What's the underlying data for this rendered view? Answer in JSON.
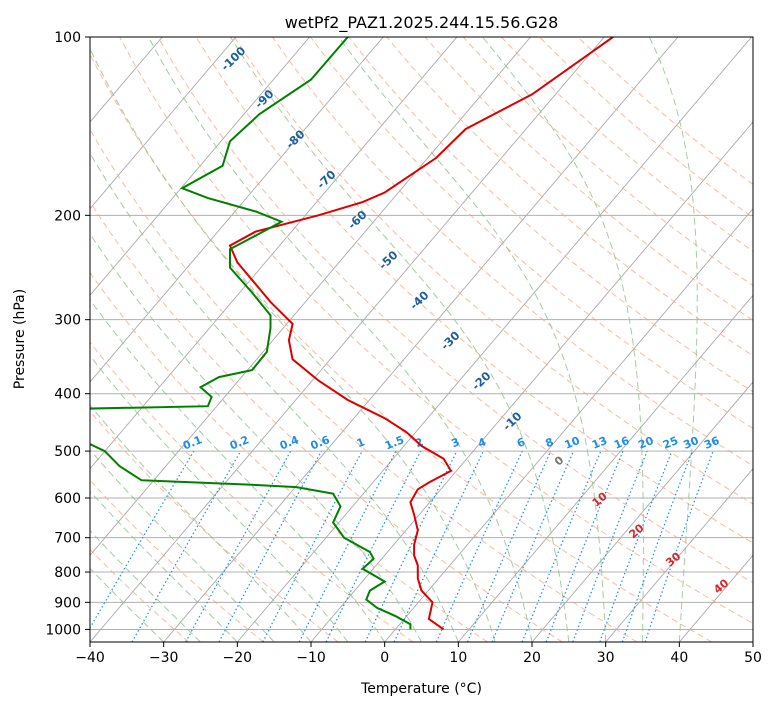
{
  "chart_data": {
    "type": "line",
    "subtype": "skew-t log-p diagram",
    "title": "wetPf2_PAZ1.2025.244.15.56.G28",
    "xlabel": "Temperature (°C)",
    "ylabel": "Pressure (hPa)",
    "xlim": [
      -40,
      50
    ],
    "ylim": [
      1050,
      100
    ],
    "y_scale": "log",
    "x_ticks": [
      "−40",
      "−30",
      "−20",
      "−10",
      "0",
      "10",
      "20",
      "30",
      "40",
      "50"
    ],
    "y_ticks": [
      "100",
      "200",
      "300",
      "400",
      "500",
      "600",
      "700",
      "800",
      "900",
      "1000"
    ],
    "grid": true,
    "series": [
      {
        "color": "#dd0000",
        "points": [
          [
            8.0,
            1000
          ],
          [
            6.0,
            960
          ],
          [
            6.5,
            900
          ],
          [
            5.0,
            860
          ],
          [
            4.5,
            820
          ],
          [
            4.5,
            780
          ],
          [
            4.0,
            750
          ],
          [
            4.0,
            720
          ],
          [
            4.5,
            680
          ],
          [
            4.0,
            640
          ],
          [
            3.5,
            610
          ],
          [
            4.5,
            580
          ],
          [
            6.0,
            565
          ],
          [
            9.0,
            540
          ],
          [
            8.0,
            515
          ],
          [
            5.0,
            490
          ],
          [
            3.0,
            465
          ],
          [
            0.0,
            440
          ],
          [
            -5.0,
            410
          ],
          [
            -9.0,
            380
          ],
          [
            -12.5,
            350
          ],
          [
            -13.0,
            325
          ],
          [
            -12.5,
            305
          ],
          [
            -15.5,
            280
          ],
          [
            -20.0,
            240
          ],
          [
            -21.0,
            225
          ],
          [
            -17.5,
            213
          ],
          [
            -9.0,
            200
          ],
          [
            -3.0,
            190
          ],
          [
            0.0,
            183
          ],
          [
            7.0,
            160
          ],
          [
            11.0,
            143
          ],
          [
            20.0,
            125
          ],
          [
            31.0,
            100
          ]
        ]
      },
      {
        "color": "#008000",
        "points": [
          [
            3.5,
            1000
          ],
          [
            3.5,
            980
          ],
          [
            1.5,
            950
          ],
          [
            -1.0,
            920
          ],
          [
            -2.5,
            890
          ],
          [
            -2.0,
            860
          ],
          [
            0.0,
            830
          ],
          [
            -3.0,
            790
          ],
          [
            -1.5,
            760
          ],
          [
            -2.0,
            740
          ],
          [
            -5.5,
            700
          ],
          [
            -7.0,
            660
          ],
          [
            -6.0,
            620
          ],
          [
            -7.0,
            590
          ],
          [
            -12.0,
            575
          ],
          [
            -18.0,
            570
          ],
          [
            -33.0,
            560
          ],
          [
            -36.0,
            530
          ],
          [
            -38.0,
            500
          ],
          [
            -41.0,
            480
          ],
          [
            -60.0,
            470
          ],
          [
            -70.0,
            430
          ],
          [
            -45.0,
            425
          ],
          [
            -24.0,
            420
          ],
          [
            -23.5,
            405
          ],
          [
            -25.0,
            390
          ],
          [
            -22.5,
            375
          ],
          [
            -18.0,
            365
          ],
          [
            -16.0,
            340
          ],
          [
            -15.5,
            310
          ],
          [
            -15.5,
            295
          ],
          [
            -18.0,
            270
          ],
          [
            -21.0,
            245
          ],
          [
            -21.0,
            228
          ],
          [
            -18.0,
            218
          ],
          [
            -14.0,
            205
          ],
          [
            -17.5,
            197
          ],
          [
            -24.0,
            187
          ],
          [
            -27.5,
            180
          ],
          [
            -22.0,
            165
          ],
          [
            -21.0,
            150
          ],
          [
            -17.0,
            135
          ],
          [
            -10.0,
            118
          ],
          [
            -5.0,
            100
          ]
        ]
      }
    ],
    "labels": {
      "dry_adiabats": [
        "-100",
        "-90",
        "-80",
        "-70",
        "-60",
        "-50",
        "-40",
        "-30",
        "-20",
        "-10"
      ],
      "mixing_ratios": [
        "0.1",
        "0.2",
        "0.4",
        "0.6",
        "1",
        "1.5",
        "2",
        "3",
        "4",
        "6",
        "8",
        "10",
        "13",
        "16",
        "20",
        "25",
        "30",
        "36"
      ],
      "moist_adiabats": [
        "0",
        "10",
        "20",
        "30",
        "40"
      ]
    }
  },
  "colors": {
    "temperature": "#dd0000",
    "dewpoint": "#008000",
    "isotherm": "#aaaaaa",
    "dry_adiabat": "#f4a582",
    "moist_adiabat": "#8cc08c",
    "mixing_ratio": "#1f8ee8",
    "dry_label": "#1f5f9f",
    "moist_label": "#d62728"
  }
}
